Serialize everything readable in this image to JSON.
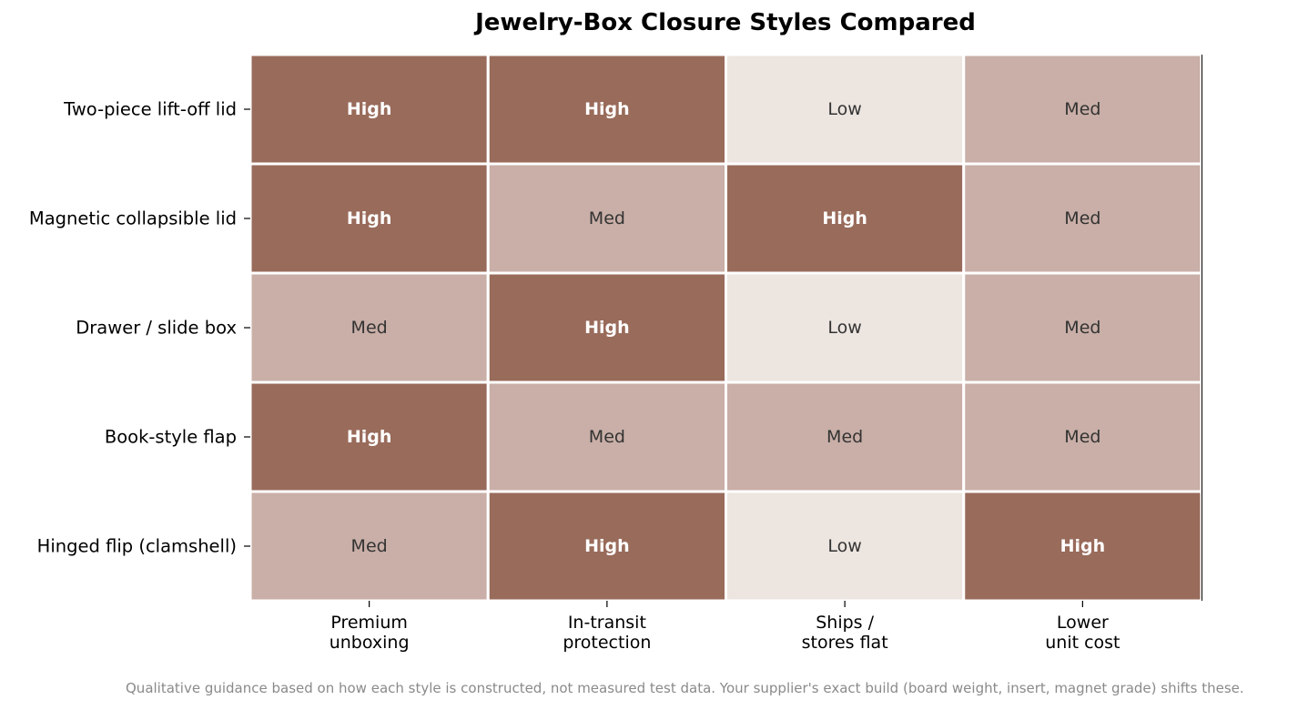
{
  "chart_data": {
    "type": "heatmap",
    "title": "Jewelry-Box Closure Styles Compared",
    "rows": [
      "Two-piece lift-off lid",
      "Magnetic collapsible lid",
      "Drawer / slide box",
      "Book-style flap",
      "Hinged flip (clamshell)"
    ],
    "columns": [
      [
        "Premium",
        "unboxing"
      ],
      [
        "In-transit",
        "protection"
      ],
      [
        "Ships /",
        "stores flat"
      ],
      [
        "Lower",
        "unit cost"
      ]
    ],
    "values": [
      [
        "High",
        "High",
        "Low",
        "Med"
      ],
      [
        "High",
        "Med",
        "High",
        "Med"
      ],
      [
        "Med",
        "High",
        "Low",
        "Med"
      ],
      [
        "High",
        "Med",
        "Med",
        "Med"
      ],
      [
        "Med",
        "High",
        "Low",
        "High"
      ]
    ],
    "levels": {
      "High": {
        "fill": "#996b5b",
        "text": "#ffffff",
        "bold": true
      },
      "Med": {
        "fill": "#c9afa7",
        "text": "#333333",
        "bold": false
      },
      "Low": {
        "fill": "#ede5e0",
        "text": "#333333",
        "bold": false
      }
    },
    "grid": false,
    "legend": "none"
  },
  "footnote": "Qualitative guidance based on how each style is constructed, not measured test data. Your supplier's exact build (board weight, insert, magnet grade) shifts these."
}
